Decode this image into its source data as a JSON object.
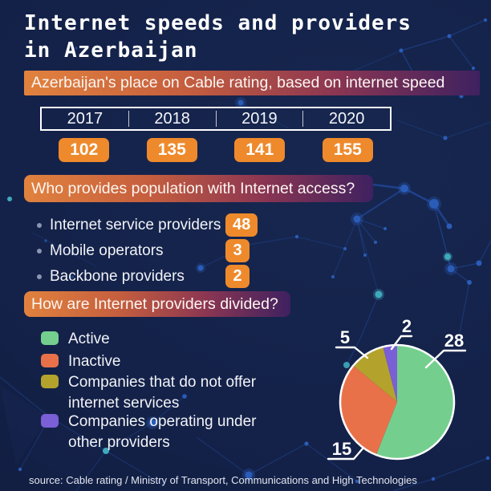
{
  "title": {
    "line1": "Internet speeds and providers",
    "line2": "in Azerbaijan"
  },
  "sections": {
    "rating": {
      "heading": "Azerbaijan's place on Cable rating, based on internet speed",
      "years": [
        "2017",
        "2018",
        "2019",
        "2020"
      ],
      "values": [
        "102",
        "135",
        "141",
        "155"
      ]
    },
    "providers": {
      "heading": "Who provides population with Internet access?",
      "items": [
        {
          "label": "Internet service providers",
          "value": "48"
        },
        {
          "label": "Mobile operators",
          "value": "3"
        },
        {
          "label": "Backbone providers",
          "value": "2"
        }
      ]
    },
    "division": {
      "heading": "How are Internet providers divided?"
    }
  },
  "chart_data": {
    "type": "pie",
    "title": "How are Internet providers divided?",
    "total": 50,
    "start_angle_deg": -90,
    "direction": "clockwise",
    "legend_position": "left",
    "slices": [
      {
        "label": "Active",
        "value": 28,
        "color": "#74cf8e"
      },
      {
        "label": "Inactive",
        "value": 15,
        "color": "#e8714a"
      },
      {
        "label": "Companies that do not offer internet services",
        "value": 5,
        "color": "#b3a32c"
      },
      {
        "label": "Companies operating under other providers",
        "value": 2,
        "color": "#7a5fd6"
      }
    ]
  },
  "source": "source: Cable rating / Ministry of Transport, Communications and High Technologies",
  "colors": {
    "background": "#14224a",
    "badge_orange": "#ee8a2c",
    "banner_gradient_start": "#e1823e",
    "banner_gradient_end": "#3f2160",
    "network_line": "#1f4592",
    "network_node": "#2a5cb8",
    "accent_teal": "#3fa9bc"
  }
}
